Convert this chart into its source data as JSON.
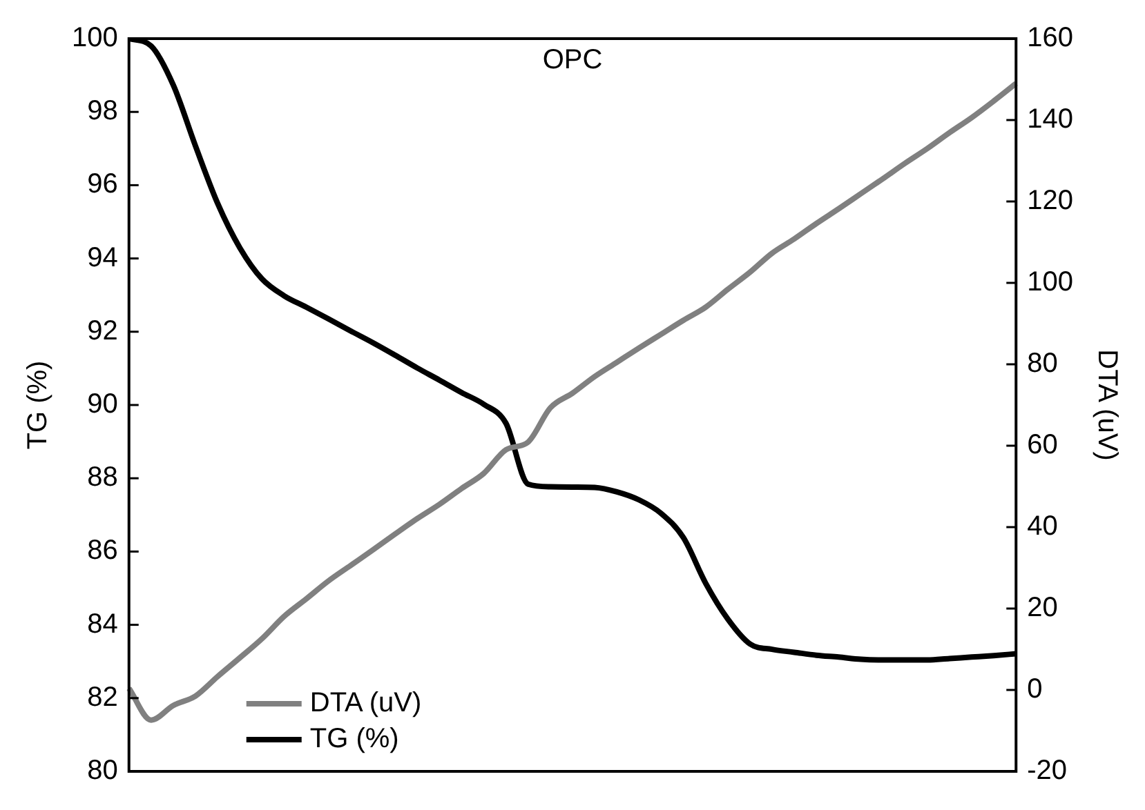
{
  "chart_data": {
    "type": "line",
    "title": "OPC",
    "ylabel": "TG (%)",
    "y2label": "DTA (uV)",
    "categories": [
      null,
      null,
      null,
      null,
      null,
      null,
      null,
      null,
      null,
      null,
      null,
      null,
      null,
      null,
      null,
      null,
      null,
      null,
      null,
      null,
      null,
      null,
      null,
      null,
      null,
      null,
      null,
      null,
      null,
      null,
      null,
      null,
      null,
      null,
      null,
      null,
      null,
      null,
      null,
      null,
      null
    ],
    "ylim": [
      80,
      100
    ],
    "yticks": [
      80,
      82,
      84,
      86,
      88,
      90,
      92,
      94,
      96,
      98,
      100
    ],
    "y2lim": [
      -20,
      160
    ],
    "y2ticks": [
      -20,
      0,
      20,
      40,
      60,
      80,
      100,
      120,
      140,
      160
    ],
    "legend": "bottom left",
    "marker": "none",
    "line_style": "solid",
    "grid": false,
    "tick_labels": "y",
    "series": [
      {
        "name": "DTA (uV)",
        "color": "#808080",
        "axis": "y2",
        "values": [
          0.4,
          -7.4,
          -3.8,
          -1.5,
          3.3,
          7.9,
          12.6,
          18.1,
          22.4,
          26.8,
          30.6,
          34.4,
          38.3,
          42.1,
          45.6,
          49.5,
          53.2,
          59.0,
          60.9,
          69.3,
          72.9,
          77.0,
          80.5,
          84.0,
          87.4,
          90.8,
          94.0,
          98.4,
          102.6,
          107.3,
          110.8,
          114.6,
          118.2,
          121.9,
          125.6,
          129.4,
          133.0,
          136.9,
          140.6,
          144.7,
          149.0
        ]
      },
      {
        "name": "TG (%)",
        "color": "#000000",
        "values": [
          100,
          99.8,
          98.73,
          97.07,
          95.5,
          94.29,
          93.44,
          92.98,
          92.67,
          92.35,
          92.02,
          91.7,
          91.36,
          91.01,
          90.68,
          90.34,
          90.02,
          89.5,
          87.84,
          87.77,
          87.76,
          87.75,
          87.63,
          87.41,
          87.04,
          86.38,
          85.14,
          84.16,
          83.48,
          83.33,
          83.25,
          83.17,
          83.12,
          83.06,
          83.04,
          83.04,
          83.04,
          83.08,
          83.12,
          83.16,
          83.21
        ]
      }
    ]
  }
}
